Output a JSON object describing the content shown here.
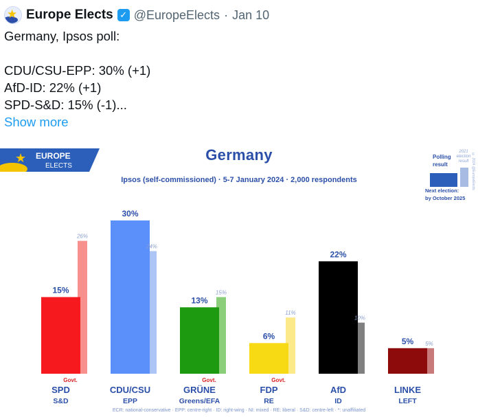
{
  "tweet": {
    "display_name": "Europe Elects",
    "handle": "@EuropeElects",
    "separator": "·",
    "timestamp": "Jan 10",
    "lines": [
      "Germany, Ipsos poll:",
      "",
      "CDU/CSU-EPP: 30% (+1)",
      "AfD-ID: 22% (+1)",
      "SPD-S&D: 15% (-1)..."
    ],
    "show_more": "Show more"
  },
  "logo": {
    "line1": "EUROPE",
    "line2": "ELECTS"
  },
  "legend": {
    "polling_label": "Polling result",
    "previous_label": "2021 election result",
    "copyright": "© 2024 @EuropeElects",
    "next_election_line1": "Next election:",
    "next_election_line2": "by October 2025"
  },
  "footer": "ECR: national-conservative · EPP: centre-right · ID: right-wing · NI: mixed · RE: liberal · S&D: centre-left · *: unaffiliated",
  "colors": {
    "accent": "#2b4fa8",
    "link": "#1d9bf0",
    "verified": "#1d9bf0"
  },
  "chart_data": {
    "type": "bar",
    "title": "Germany",
    "subtitle": "Ipsos (self-commissioned) · 5-7 January 2024 · 2,000 respondents",
    "categories": [
      "SPD",
      "CDU/CSU",
      "GRÜNE",
      "FDP",
      "AfD",
      "LINKE"
    ],
    "groups": [
      "S&D",
      "EPP",
      "Greens/EFA",
      "RE",
      "ID",
      "LEFT"
    ],
    "govt": [
      true,
      false,
      true,
      true,
      false,
      false
    ],
    "govt_label": "Govt.",
    "series": [
      {
        "name": "Polling result",
        "values": [
          15,
          30,
          13,
          6,
          22,
          5
        ],
        "labels": [
          "15%",
          "30%",
          "13%",
          "6%",
          "22%",
          "5%"
        ]
      },
      {
        "name": "2021 election result",
        "values": [
          26,
          24,
          15,
          11,
          10,
          5
        ],
        "labels": [
          "26%",
          "24%",
          "15%",
          "11%",
          "10%",
          "5%"
        ]
      }
    ],
    "colors": {
      "poll": [
        "#f6191d",
        "#5b8ff9",
        "#1e9a11",
        "#f7da14",
        "#000000",
        "#8d0b0b"
      ],
      "previous": [
        "#f8908d",
        "#acc5f5",
        "#8bce7a",
        "#fbe98a",
        "#808080",
        "#c87a7a"
      ]
    },
    "ylim": [
      0,
      32
    ]
  }
}
